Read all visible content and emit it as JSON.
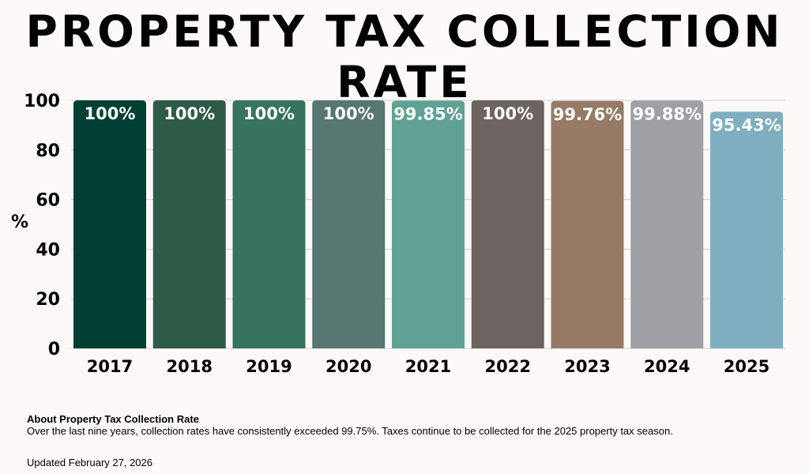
{
  "chart_data": {
    "type": "bar",
    "title": "PROPERTY TAX COLLECTION RATE",
    "xlabel": "",
    "ylabel": "%",
    "ylim": [
      0,
      100
    ],
    "yticks": [
      0,
      20,
      40,
      60,
      80,
      100
    ],
    "grid": true,
    "categories": [
      "2017",
      "2018",
      "2019",
      "2020",
      "2021",
      "2022",
      "2023",
      "2024",
      "2025"
    ],
    "values": [
      100,
      100,
      100,
      100,
      99.85,
      100,
      99.76,
      99.88,
      95.43
    ],
    "data_labels": [
      "100%",
      "100%",
      "100%",
      "100%",
      "99.85%",
      "100%",
      "99.76%",
      "99.88%",
      "95.43%"
    ],
    "colors": [
      "#003f32",
      "#2e5b48",
      "#37735d",
      "#587672",
      "#5fa294",
      "#6d6461",
      "#977a66",
      "#9ea0a6",
      "#7eaebf"
    ]
  },
  "footer": {
    "about_title": "About Property Tax Collection Rate",
    "about_text": "Over the last nine years, collection rates have consistently exceeded 99.75%. Taxes continue to be collected for the 2025 property tax season.",
    "updated": "Updated February 27, 2026"
  }
}
